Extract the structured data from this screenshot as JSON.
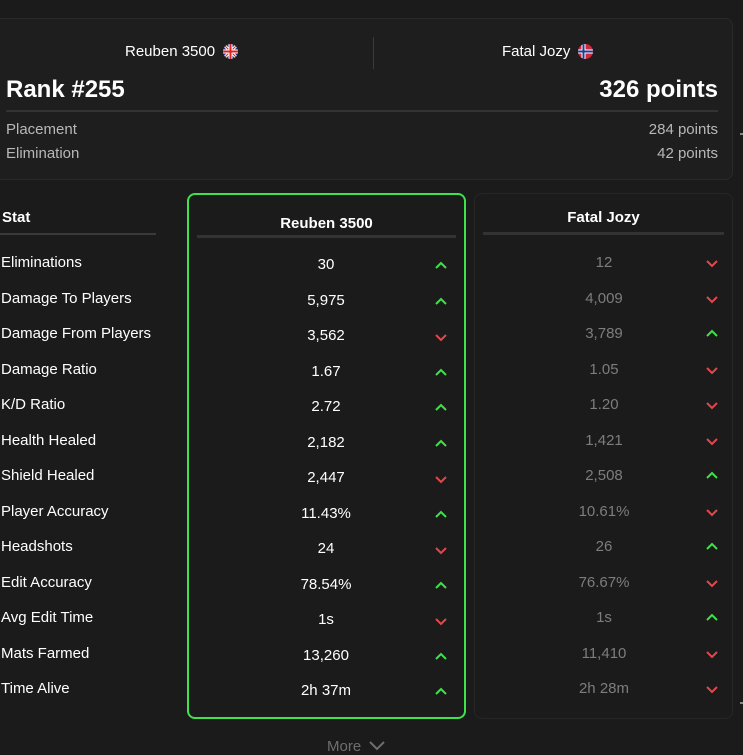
{
  "match": {
    "player_a": "Reuben 3500",
    "player_b": "Fatal Jozy",
    "rank": "Rank #255",
    "total_points": "326 points",
    "breakdown": [
      {
        "label": "Placement",
        "value": "284 points"
      },
      {
        "label": "Elimination",
        "value": "42 points"
      }
    ]
  },
  "table": {
    "stat_header": "Stat",
    "rows": [
      {
        "stat": "Eliminations",
        "a": "30",
        "a_dir": "up",
        "b": "12",
        "b_dir": "down"
      },
      {
        "stat": "Damage To Players",
        "a": "5,975",
        "a_dir": "up",
        "b": "4,009",
        "b_dir": "down"
      },
      {
        "stat": "Damage From Players",
        "a": "3,562",
        "a_dir": "down",
        "b": "3,789",
        "b_dir": "up"
      },
      {
        "stat": "Damage Ratio",
        "a": "1.67",
        "a_dir": "up",
        "b": "1.05",
        "b_dir": "down"
      },
      {
        "stat": "K/D Ratio",
        "a": "2.72",
        "a_dir": "up",
        "b": "1.20",
        "b_dir": "down"
      },
      {
        "stat": "Health Healed",
        "a": "2,182",
        "a_dir": "up",
        "b": "1,421",
        "b_dir": "down"
      },
      {
        "stat": "Shield Healed",
        "a": "2,447",
        "a_dir": "down",
        "b": "2,508",
        "b_dir": "up"
      },
      {
        "stat": "Player Accuracy",
        "a": "11.43%",
        "a_dir": "up",
        "b": "10.61%",
        "b_dir": "down"
      },
      {
        "stat": "Headshots",
        "a": "24",
        "a_dir": "down",
        "b": "26",
        "b_dir": "up"
      },
      {
        "stat": "Edit Accuracy",
        "a": "78.54%",
        "a_dir": "up",
        "b": "76.67%",
        "b_dir": "down"
      },
      {
        "stat": "Avg Edit Time",
        "a": "1s",
        "a_dir": "down",
        "b": "1s",
        "b_dir": "up"
      },
      {
        "stat": "Mats Farmed",
        "a": "13,260",
        "a_dir": "up",
        "b": "11,410",
        "b_dir": "down"
      },
      {
        "stat": "Time Alive",
        "a": "2h 37m",
        "a_dir": "up",
        "b": "2h 28m",
        "b_dir": "down"
      }
    ]
  },
  "footer": {
    "more_label": "More"
  },
  "icons": {
    "player_a_flag": "uk-flag-icon",
    "player_b_flag": "norway-flag-icon"
  },
  "colors": {
    "better": "#3ee24a",
    "worse": "#e2474a"
  }
}
